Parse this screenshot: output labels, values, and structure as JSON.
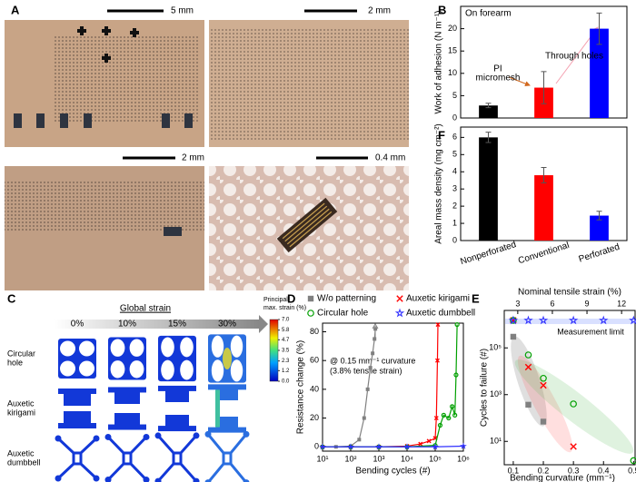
{
  "panel_labels": {
    "a": "A",
    "b": "B",
    "c": "C",
    "d": "D",
    "e": "E",
    "f": "F"
  },
  "photos": [
    {
      "scale_bar": "5 mm"
    },
    {
      "scale_bar": "2 mm"
    },
    {
      "scale_bar": "2 mm"
    },
    {
      "scale_bar": "0.4 mm"
    }
  ],
  "simulation": {
    "title": "Global strain",
    "columns": [
      "0%",
      "10%",
      "15%",
      "30%"
    ],
    "rows": [
      [
        "Circular",
        "hole"
      ],
      [
        "Auxetic",
        "kirigami"
      ],
      [
        "Auxetic",
        "dumbbell"
      ]
    ],
    "colorbar": {
      "label": [
        "Principal",
        "max. strain (%)"
      ],
      "lim": [
        0,
        7
      ],
      "ticks": [
        {
          "value": 7,
          "label": "7.0"
        },
        5.8,
        4.7,
        3.5,
        2.3,
        1.2,
        {
          "value": 0,
          "label": "0.0"
        }
      ]
    }
  },
  "chart_data": [
    {
      "type": "bar",
      "ylabel": "Work of adhesion (N m⁻¹)",
      "categories": [
        null,
        null,
        null
      ],
      "values": [
        2.8,
        6.8,
        20
      ],
      "errors": [
        0.5,
        3.6,
        3.5
      ],
      "colors": [
        "#000000",
        "#ff0000",
        "#0000ff"
      ],
      "ylim": [
        0,
        25
      ],
      "yticks": [
        0,
        5,
        10,
        15,
        20
      ],
      "annotations": [
        "On forearm",
        "PI",
        "micromesh",
        "Through holes"
      ]
    },
    {
      "type": "bar",
      "ylabel": "Areal mass density (mg cm⁻²)",
      "categories": [
        "Nonperforated",
        "Conventional",
        "Perforated"
      ],
      "values": [
        6.0,
        3.8,
        1.45
      ],
      "errors": [
        0.3,
        0.45,
        0.25
      ],
      "colors": [
        "#000000",
        "#ff0000",
        "#0000ff"
      ],
      "ylim": [
        0,
        6.6
      ],
      "yticks": [
        0,
        1,
        2,
        3,
        4,
        5,
        6
      ]
    },
    {
      "type": "line",
      "xlabel": "Bending cycles (#)",
      "ylabel": "Resistance change (%)",
      "xscale": "log",
      "xlim": [
        10,
        1000000
      ],
      "xticks": [
        {
          "value": 10,
          "label": "10¹"
        },
        {
          "value": 100,
          "label": "10²"
        },
        {
          "value": 1000,
          "label": "10³"
        },
        {
          "value": 10000,
          "label": "10⁴"
        },
        {
          "value": 100000,
          "label": "10⁵"
        },
        {
          "value": 1000000,
          "label": "10⁶"
        }
      ],
      "ylim": [
        -3,
        86
      ],
      "yticks": [
        0,
        20,
        40,
        60,
        80
      ],
      "annotations": [
        "@ 0.15 mm⁻¹ curvature",
        "(3.8% tensile strain)"
      ],
      "series": [
        {
          "name": "W/o patterning",
          "color": "#808080",
          "marker": "square",
          "x": [
            10,
            30,
            100,
            200,
            300,
            400,
            500,
            600,
            700,
            750
          ],
          "values": [
            0,
            0,
            0.5,
            5,
            20,
            40,
            55,
            65,
            75,
            82
          ]
        },
        {
          "name": "Auxetic kirigami",
          "color": "#ff0000",
          "marker": "x",
          "x": [
            10,
            100,
            1000,
            10000,
            30000,
            60000,
            100000,
            110000,
            120000,
            125000
          ],
          "values": [
            0,
            0,
            0,
            0.5,
            2,
            4,
            6,
            20,
            60,
            85
          ]
        },
        {
          "name": "Circular hole",
          "color": "#00a000",
          "marker": "circle",
          "x": [
            10,
            100,
            1000,
            10000,
            100000,
            150000,
            200000,
            300000,
            400000,
            500000,
            550000,
            600000
          ],
          "values": [
            0,
            0,
            0,
            0,
            1,
            15,
            22,
            20,
            28,
            22,
            50,
            85
          ]
        },
        {
          "name": "Auxetic dumbbell",
          "color": "#3030ff",
          "marker": "star",
          "x": [
            10,
            100,
            1000,
            10000,
            100000,
            1000000
          ],
          "values": [
            0,
            0,
            0,
            0,
            0,
            0.5
          ]
        }
      ]
    },
    {
      "type": "scatter",
      "xlabel": "Bending curvature (mm⁻¹)",
      "ylabel": "Cycles to failure (#)",
      "x2label": "Nominal tensile strain (%)",
      "xlim": [
        0.07,
        0.505
      ],
      "xticks": [
        0.1,
        0.2,
        0.3,
        0.4,
        0.5
      ],
      "x2lim": [
        1.83,
        13.17
      ],
      "x2ticks": [
        3,
        6,
        9,
        12
      ],
      "yscale": "log",
      "ylim": [
        1,
        4000000
      ],
      "yticks": [
        {
          "value": 10,
          "label": "10¹"
        },
        {
          "value": 1000,
          "label": "10³"
        },
        {
          "value": 100000,
          "label": "10⁵"
        }
      ],
      "annotations": [
        "Measurement limit"
      ],
      "series": [
        {
          "color": "#808080",
          "marker": "square",
          "x": [
            0.1,
            0.15,
            0.2
          ],
          "values": [
            300000,
            370,
            70
          ]
        },
        {
          "color": "#ff0000",
          "marker": "x",
          "x": [
            0.1,
            0.15,
            0.2,
            0.3
          ],
          "values": [
            1500000,
            15000,
            2500,
            6
          ]
        },
        {
          "color": "#00a000",
          "marker": "circle",
          "x": [
            0.1,
            0.15,
            0.2,
            0.3,
            0.5
          ],
          "values": [
            1500000,
            50000,
            5000,
            400,
            1.5
          ]
        },
        {
          "color": "#3030ff",
          "marker": "star",
          "x": [
            0.1,
            0.15,
            0.2,
            0.3,
            0.4,
            0.5
          ],
          "values": [
            1500000,
            1500000,
            1500000,
            1500000,
            1500000,
            1500000
          ]
        }
      ]
    }
  ]
}
